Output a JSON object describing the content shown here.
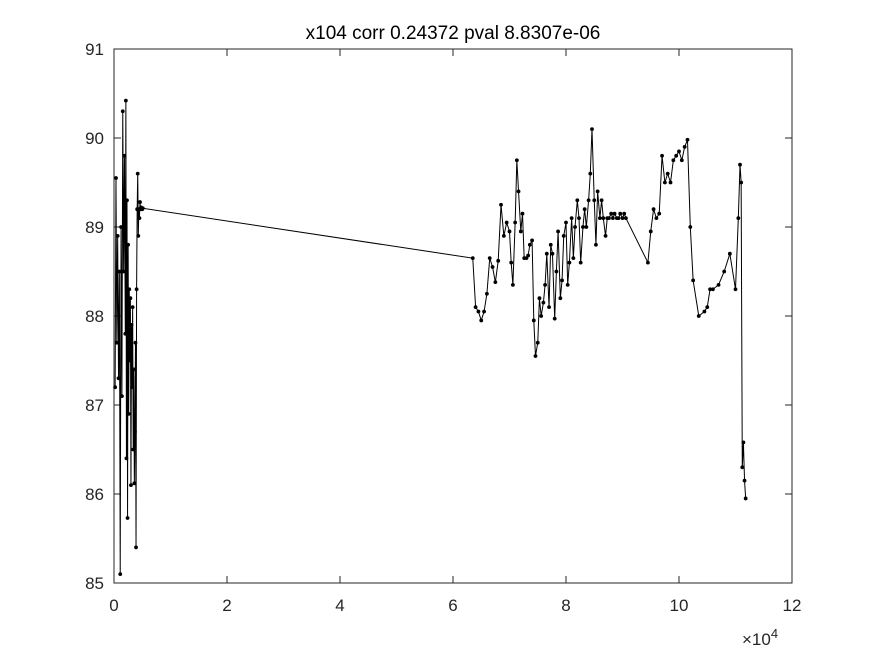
{
  "chart_data": {
    "type": "line",
    "title": "x104 corr 0.24372 pval 8.8307e-06",
    "xlabel": "",
    "ylabel": "",
    "xlim": [
      0,
      120000
    ],
    "ylim": [
      85,
      91
    ],
    "x_ticks": [
      0,
      20000,
      40000,
      60000,
      80000,
      100000,
      120000
    ],
    "x_tick_labels": [
      "0",
      "2",
      "4",
      "6",
      "8",
      "10",
      "12"
    ],
    "x_exponent_label": "×10",
    "x_exponent_power": "4",
    "y_ticks": [
      85,
      86,
      87,
      88,
      89,
      90,
      91
    ],
    "y_tick_labels": [
      "85",
      "86",
      "87",
      "88",
      "89",
      "90",
      "91"
    ],
    "grid": false,
    "marker": "dot",
    "line_color": "#000000",
    "series": [
      {
        "x": [
          200,
          350,
          500,
          650,
          800,
          950,
          1100,
          1250,
          1400,
          1550,
          1700,
          1850,
          2000,
          2100,
          2200,
          2300,
          2400,
          2500,
          2600,
          2700,
          2800,
          2900,
          3000,
          3100,
          3200,
          3300,
          3400,
          3500,
          3600,
          3700,
          3800,
          3900,
          4000,
          4100,
          4200,
          4300,
          4400,
          4500,
          4600,
          4700,
          4800,
          4900,
          5000,
          5100,
          63500,
          64000,
          64500,
          65000,
          65500,
          66000,
          66500,
          67000,
          67500,
          68000,
          68500,
          69000,
          69500,
          70000,
          70300,
          70600,
          71000,
          71300,
          71600,
          72000,
          72300,
          72600,
          73000,
          73300,
          73600,
          74000,
          74300,
          74600,
          75000,
          75300,
          75600,
          76000,
          76300,
          76600,
          77000,
          77300,
          77600,
          78000,
          78300,
          78600,
          79000,
          79300,
          79600,
          80000,
          80300,
          80600,
          81000,
          81300,
          81600,
          82000,
          82300,
          82600,
          83000,
          83300,
          83600,
          84000,
          84300,
          84600,
          85000,
          85300,
          85600,
          86000,
          86300,
          86600,
          87000,
          87300,
          87600,
          88000,
          88300,
          88600,
          89000,
          89300,
          89600,
          90000,
          90300,
          90600,
          94500,
          95000,
          95500,
          96000,
          96500,
          97000,
          97500,
          98000,
          98500,
          99000,
          99500,
          100000,
          100500,
          101000,
          101500,
          102000,
          102500,
          103500,
          104500,
          105000,
          105500,
          106000,
          107000,
          108000,
          109000,
          110000,
          110500,
          110800,
          111000,
          111200,
          111400,
          111600,
          111800
        ],
        "y": [
          87.2,
          89.55,
          87.7,
          88.9,
          87.3,
          88.5,
          85.1,
          89.0,
          87.1,
          90.3,
          88.5,
          89.8,
          87.8,
          90.42,
          86.4,
          89.3,
          85.73,
          88.8,
          86.9,
          88.3,
          87.5,
          88.2,
          86.1,
          87.9,
          87.2,
          88.1,
          86.5,
          87.4,
          86.12,
          86.7,
          87.7,
          85.4,
          88.3,
          89.2,
          89.6,
          88.9,
          89.2,
          89.1,
          89.28,
          89.2,
          89.22,
          89.2,
          89.2,
          89.21,
          88.65,
          88.1,
          88.05,
          87.95,
          88.05,
          88.25,
          88.65,
          88.55,
          88.38,
          88.62,
          89.25,
          88.9,
          89.05,
          88.95,
          88.6,
          88.35,
          89.05,
          89.75,
          89.4,
          88.95,
          89.15,
          88.65,
          88.65,
          88.68,
          88.8,
          88.85,
          87.95,
          87.55,
          87.7,
          88.2,
          88.0,
          88.15,
          88.35,
          88.7,
          88.1,
          88.8,
          88.7,
          87.97,
          88.5,
          88.95,
          88.2,
          88.4,
          88.9,
          89.05,
          88.35,
          88.6,
          89.1,
          88.65,
          89.0,
          89.3,
          89.1,
          88.6,
          89.0,
          89.2,
          89.0,
          89.3,
          89.6,
          90.1,
          89.3,
          88.8,
          89.4,
          89.1,
          89.3,
          89.1,
          88.9,
          89.1,
          89.1,
          89.15,
          89.1,
          89.15,
          89.1,
          89.1,
          89.15,
          89.1,
          89.15,
          89.1,
          88.6,
          88.95,
          89.2,
          89.1,
          89.15,
          89.8,
          89.5,
          89.6,
          89.5,
          89.75,
          89.8,
          89.85,
          89.75,
          89.9,
          89.98,
          89.0,
          88.4,
          88.0,
          88.05,
          88.1,
          88.3,
          88.3,
          88.35,
          88.5,
          88.7,
          88.3,
          89.1,
          89.7,
          89.5,
          86.3,
          86.58,
          86.15,
          85.95
        ]
      }
    ]
  }
}
